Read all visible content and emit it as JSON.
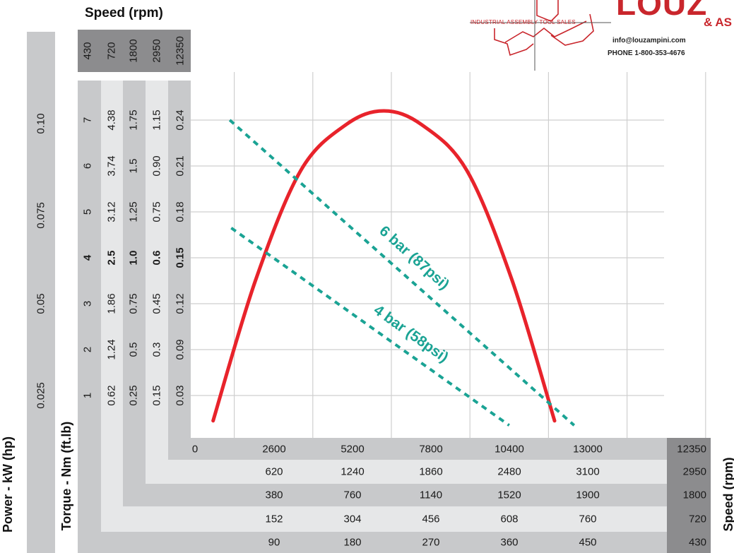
{
  "logo": {
    "brand": "LOUZ",
    "brand_suffix": "& AS",
    "tagline": "INDUSTRIAL ASSEMBLY TOOL SALES",
    "email": "info@louzampini.com",
    "phone": "PHONE 1-800-353-4676"
  },
  "colors": {
    "curve": "#e8232b",
    "pressure_lines": "#1aa394",
    "grid": "#cfcfcf",
    "panel_dark": "#8c8c8e",
    "panel_mid": "#c8c9cb",
    "panel_light": "#e6e7e8",
    "logo_red": "#c9262c"
  },
  "chart_data": {
    "type": "line",
    "titles": {
      "speed_top": "Speed (rpm)",
      "speed_right": "Speed (rpm)",
      "power": "Power - kW (hp)",
      "torque": "Torque - Nm (ft.lb)"
    },
    "power_kw_ticks": [
      "0.025",
      "0.05",
      "0.075",
      "0.10"
    ],
    "left_scales": [
      {
        "values": [
          "1",
          "2",
          "3",
          "4",
          "5",
          "6",
          "7"
        ],
        "highlight": "4"
      },
      {
        "values": [
          "0.62",
          "1.24",
          "1.86",
          "2.5",
          "3.12",
          "3.74",
          "4.38"
        ],
        "highlight": "2.5"
      },
      {
        "values": [
          "0.25",
          "0.5",
          "0.75",
          "1.0",
          "1.25",
          "1.5",
          "1.75"
        ],
        "highlight": "1.0"
      },
      {
        "values": [
          "0.15",
          "0.3",
          "0.45",
          "0.6",
          "0.75",
          "0.90",
          "1.15"
        ],
        "highlight": "0.6"
      },
      {
        "values": [
          "0.03",
          "0.09",
          "0.12",
          "0.15",
          "0.18",
          "0.21",
          "0.24"
        ],
        "highlight": "0.15"
      }
    ],
    "top_speed_labels": [
      "430",
      "720",
      "1800",
      "2950",
      "12350"
    ],
    "bottom_scales": [
      {
        "max_label": "12350",
        "values": [
          "0",
          "2600",
          "5200",
          "7800",
          "10400",
          "13000"
        ]
      },
      {
        "max_label": "2950",
        "values": [
          "620",
          "1240",
          "1860",
          "2480",
          "3100"
        ]
      },
      {
        "max_label": "1800",
        "values": [
          "380",
          "760",
          "1140",
          "1520",
          "1900"
        ]
      },
      {
        "max_label": "720",
        "values": [
          "152",
          "304",
          "456",
          "608",
          "760"
        ]
      },
      {
        "max_label": "430",
        "values": [
          "90",
          "180",
          "270",
          "360",
          "450"
        ]
      }
    ],
    "xlim": [
      0,
      15250
    ],
    "ylim": [
      0,
      7.5
    ],
    "power_curve": {
      "x": [
        600,
        2000,
        3500,
        5000,
        6250,
        7500,
        9000,
        10500,
        11900
      ],
      "y": [
        0.45,
        3.5,
        5.9,
        6.9,
        7.2,
        6.9,
        5.9,
        3.5,
        0.45
      ]
    },
    "series": [
      {
        "name": "6 bar (87psi)",
        "x": [
          1150,
          12550
        ],
        "y": [
          7.0,
          0.35
        ]
      },
      {
        "name": "4 bar (58psi)",
        "x": [
          1200,
          10400
        ],
        "y": [
          4.65,
          0.35
        ]
      }
    ]
  }
}
